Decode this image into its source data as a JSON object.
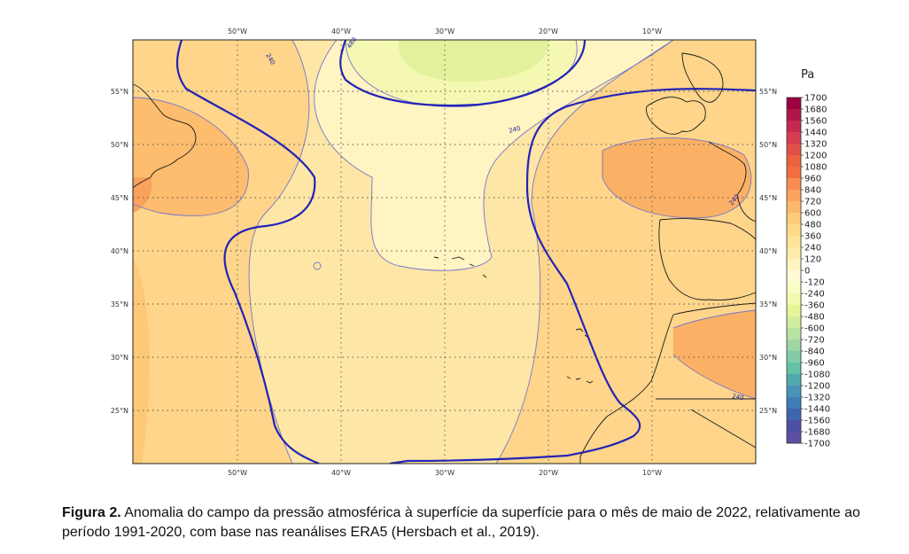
{
  "map": {
    "unit": "Pa",
    "lon_ticks_top": [
      "50°W",
      "40°W",
      "30°W",
      "20°W",
      "10°W"
    ],
    "lon_ticks_bottom": [
      "50°W",
      "40°W",
      "30°W",
      "20°W",
      "10°W"
    ],
    "lat_ticks_left": [
      "55°N",
      "50°N",
      "45°N",
      "40°N",
      "35°N",
      "30°N",
      "25°N"
    ],
    "lat_ticks_right": [
      "55°N",
      "50°N",
      "45°N",
      "40°N",
      "35°N",
      "30°N",
      "25°N"
    ],
    "contour_labels": [
      "240",
      "480",
      "240",
      "240",
      "240"
    ],
    "colorbar": {
      "labels": [
        "1700",
        "1680",
        "1560",
        "1440",
        "1320",
        "1200",
        "1080",
        "960",
        "840",
        "720",
        "600",
        "480",
        "360",
        "240",
        "120",
        "0",
        "-120",
        "-240",
        "-360",
        "-480",
        "-600",
        "-720",
        "-840",
        "-960",
        "-1080",
        "-1200",
        "-1320",
        "-1440",
        "-1560",
        "-1680",
        "-1700"
      ],
      "colors": [
        "#9e0142",
        "#b0154a",
        "#c42a4f",
        "#d53e4f",
        "#e05047",
        "#ea643f",
        "#f46d43",
        "#f88c51",
        "#fba35e",
        "#fdb96b",
        "#fdcb7a",
        "#fed98a",
        "#fee39a",
        "#feecaa",
        "#fff5c0",
        "#fffbd6",
        "#fbfdc8",
        "#f3faae",
        "#e6f598",
        "#d0ec9e",
        "#b8e2a2",
        "#9ed7a4",
        "#82cba5",
        "#66c2a5",
        "#52a8ae",
        "#4a92b6",
        "#3f7cb8",
        "#3f65ae",
        "#4d4fa3",
        "#5e4fa2"
      ]
    }
  },
  "caption": {
    "label": "Figura 2.",
    "text": " Anomalia do campo da pressão atmosférica à superfície da superfície para o mês de maio de 2022, relativamente ao período 1991-2020, com base nas reanálises ERA5 (Hersbach et al., 2019)."
  }
}
